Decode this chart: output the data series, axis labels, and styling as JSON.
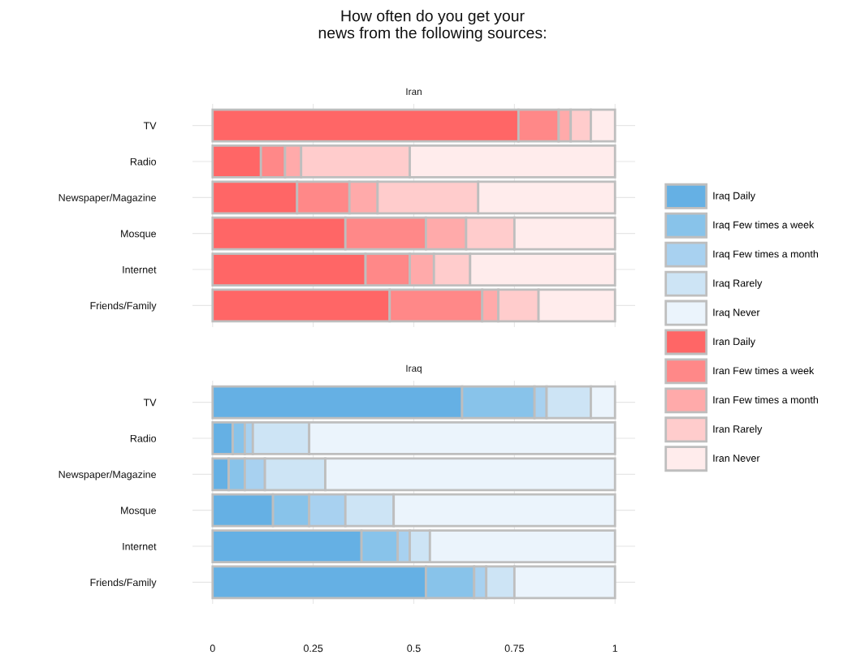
{
  "chart_data": [
    {
      "type": "bar",
      "orientation": "horizontal",
      "stacked": true,
      "title": "How often do you get your\nnews from the following sources:",
      "subtitle": "Iran",
      "categories": [
        "TV",
        "Radio",
        "Newspaper/Magazine",
        "Mosque",
        "Internet",
        "Friends/Family"
      ],
      "series": [
        {
          "name": "Iran Daily",
          "color": "#ff6666",
          "values": [
            0.76,
            0.12,
            0.21,
            0.33,
            0.38,
            0.44
          ]
        },
        {
          "name": "Iran Few times a week",
          "color": "#ff8888",
          "values": [
            0.1,
            0.06,
            0.13,
            0.2,
            0.11,
            0.23
          ]
        },
        {
          "name": "Iran Few times a month",
          "color": "#ffaaaa",
          "values": [
            0.03,
            0.04,
            0.07,
            0.1,
            0.06,
            0.04
          ]
        },
        {
          "name": "Iran Rarely",
          "color": "#ffcccc",
          "values": [
            0.05,
            0.27,
            0.25,
            0.12,
            0.09,
            0.1
          ]
        },
        {
          "name": "Iran Never",
          "color": "#ffecec",
          "values": [
            0.06,
            0.51,
            0.34,
            0.25,
            0.36,
            0.19
          ]
        }
      ],
      "xlim": [
        -0.05,
        1.05
      ],
      "xticks": [
        0,
        0.25,
        0.5,
        0.75,
        1
      ],
      "tick_labels": "y",
      "grid": true,
      "legend": "right"
    },
    {
      "type": "bar",
      "orientation": "horizontal",
      "stacked": true,
      "subtitle": "Iraq",
      "categories": [
        "TV",
        "Radio",
        "Newspaper/Magazine",
        "Mosque",
        "Internet",
        "Friends/Family"
      ],
      "series": [
        {
          "name": "Iraq Daily",
          "color": "#65b0e4",
          "values": [
            0.62,
            0.05,
            0.04,
            0.15,
            0.37,
            0.53
          ]
        },
        {
          "name": "Iraq Few times a week",
          "color": "#88c3ea",
          "values": [
            0.18,
            0.03,
            0.04,
            0.09,
            0.09,
            0.12
          ]
        },
        {
          "name": "Iraq Few times a month",
          "color": "#a8d1f0",
          "values": [
            0.03,
            0.02,
            0.05,
            0.09,
            0.03,
            0.03
          ]
        },
        {
          "name": "Iraq Rarely",
          "color": "#cde4f5",
          "values": [
            0.11,
            0.14,
            0.15,
            0.12,
            0.05,
            0.07
          ]
        },
        {
          "name": "Iraq Never",
          "color": "#ebf4fc",
          "values": [
            0.06,
            0.76,
            0.72,
            0.55,
            0.46,
            0.25
          ]
        }
      ],
      "xlim": [
        -0.05,
        1.05
      ],
      "xticks": [
        0,
        0.25,
        0.5,
        0.75,
        1
      ],
      "grid": true,
      "legend": "right"
    }
  ]
}
